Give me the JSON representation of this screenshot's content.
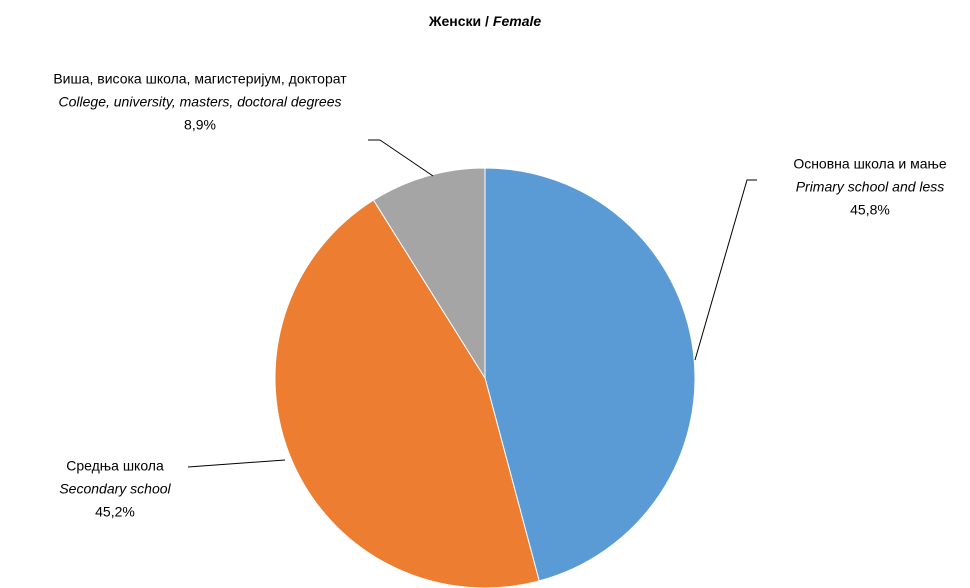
{
  "chart_data": {
    "type": "pie",
    "title": [
      "Женски /",
      "Female"
    ],
    "categories": [
      "Основна школа и мање",
      "Средња школа",
      "Виша, висока школа, магистеријум, докторат"
    ],
    "categories_en": [
      "Primary school and less",
      "Secondary school",
      "College, university, masters, doctoral degrees"
    ],
    "values": [
      45.8,
      45.2,
      8.9
    ],
    "value_labels": [
      "45,8%",
      "45,2%",
      "8,9%"
    ],
    "colors": [
      "#5b9bd5",
      "#ed7d31",
      "#a5a5a5"
    ]
  }
}
